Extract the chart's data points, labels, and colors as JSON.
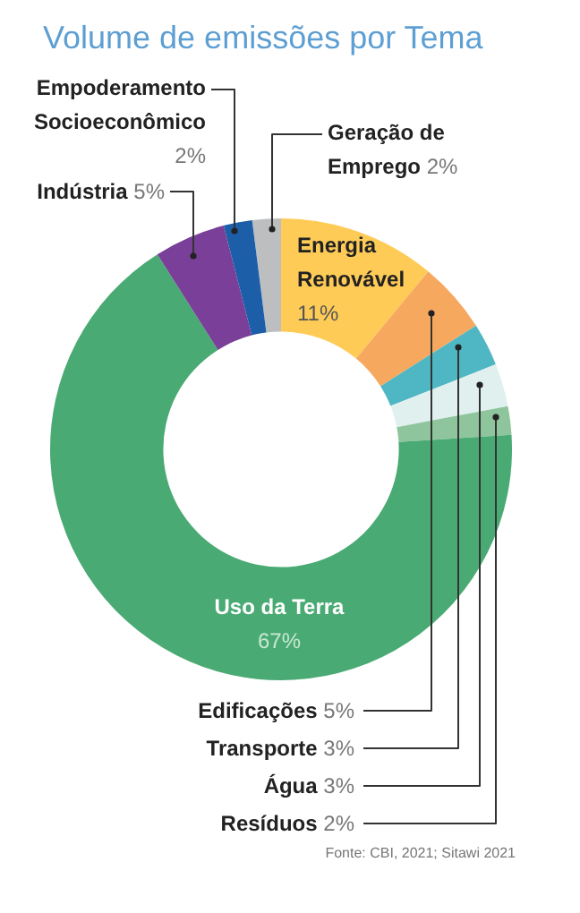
{
  "chart_data": {
    "type": "donut",
    "title": "Volume de emissões por Tema",
    "categories": [
      "Geração de Emprego",
      "Energia Renovável",
      "Edificações",
      "Transporte",
      "Água",
      "Resíduos",
      "Uso da Terra",
      "Indústria",
      "Empoderamento Socioeconômico"
    ],
    "values": [
      2,
      11,
      5,
      3,
      3,
      2,
      67,
      5,
      2
    ],
    "colors": [
      "#bcbec0",
      "#fecb57",
      "#f7a85f",
      "#4fb6c3",
      "#dff0ee",
      "#8ec59c",
      "#4aaa74",
      "#7a3f98",
      "#1d5ea8"
    ],
    "value_labels": [
      "2%",
      "11%",
      "5%",
      "3%",
      "3%",
      "2%",
      "67%",
      "5%",
      "2%"
    ],
    "annotations": [
      "Fonte: CBI, 2021; Sitawi 2021"
    ]
  }
}
